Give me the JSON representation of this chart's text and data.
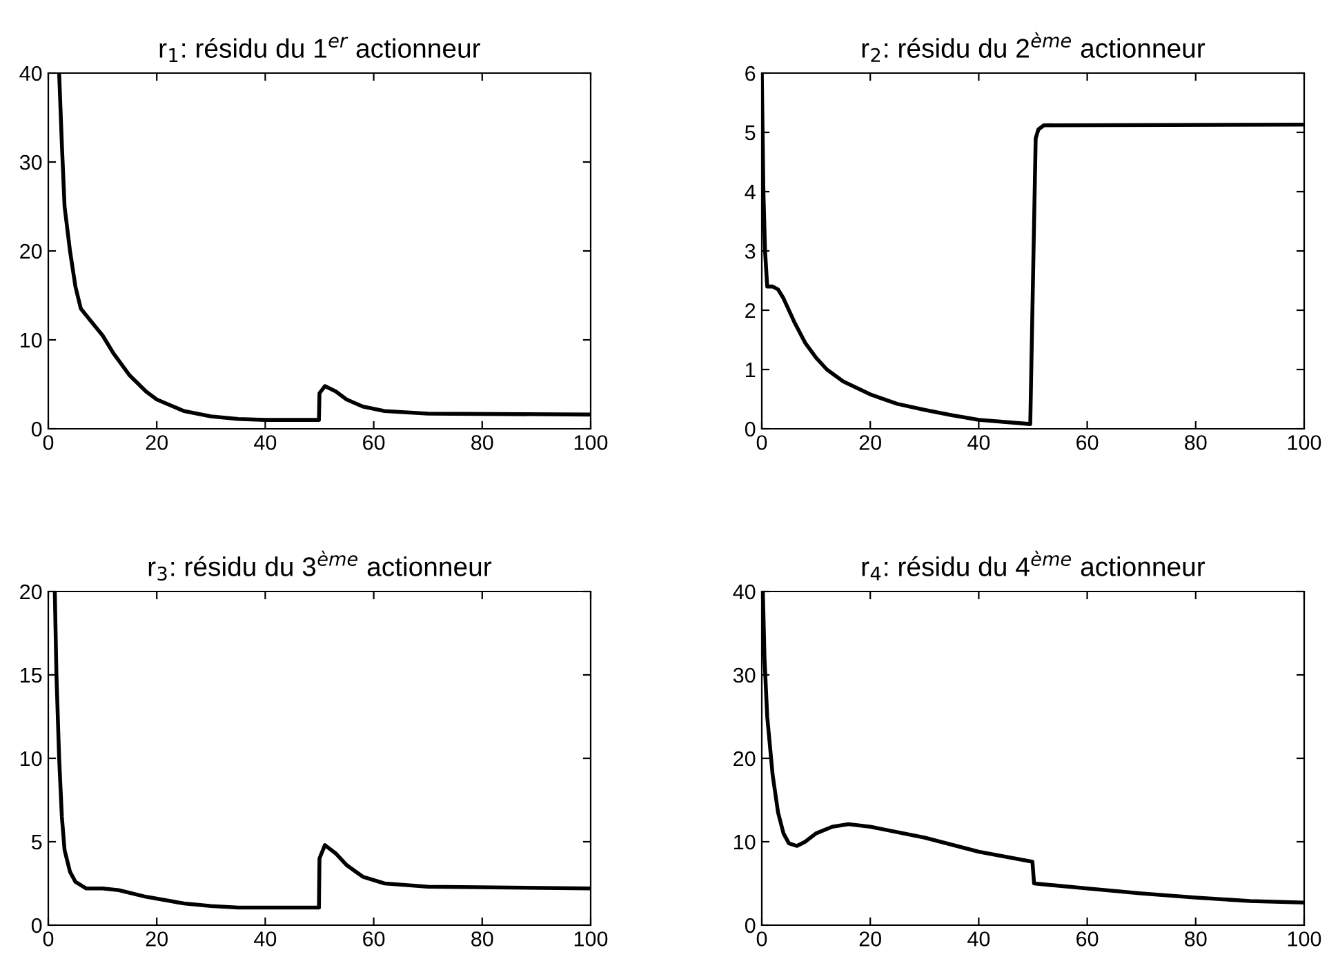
{
  "chart_data": [
    {
      "type": "line",
      "title": "r$_{1}$: résidu du 1$^{er}$ actionneur",
      "xlim": [
        0,
        100
      ],
      "ylim": [
        0,
        40
      ],
      "xticks": [
        0,
        20,
        40,
        60,
        80,
        100
      ],
      "yticks": [
        0,
        10,
        20,
        30,
        40
      ],
      "grid": false,
      "legend": false,
      "series": [
        {
          "color": "#000000",
          "x": [
            2,
            2.5,
            3,
            4,
            5,
            6,
            8,
            10,
            12,
            15,
            18,
            20,
            25,
            30,
            35,
            40,
            49.9,
            50,
            51,
            53,
            55,
            58,
            62,
            70,
            100
          ],
          "values": [
            40,
            32,
            25,
            20,
            16,
            13.5,
            12,
            10.5,
            8.5,
            6,
            4.2,
            3.3,
            2,
            1.4,
            1.1,
            1.0,
            1.0,
            4,
            4.8,
            4.2,
            3.3,
            2.5,
            2,
            1.7,
            1.6
          ]
        }
      ]
    },
    {
      "type": "line",
      "title": "r$_{2}$: résidu du 2$^{ème}$ actionneur",
      "xlim": [
        0,
        100
      ],
      "ylim": [
        0,
        6
      ],
      "xticks": [
        0,
        20,
        40,
        60,
        80,
        100
      ],
      "yticks": [
        0,
        1,
        2,
        3,
        4,
        5,
        6
      ],
      "grid": false,
      "legend": false,
      "series": [
        {
          "color": "#000000",
          "x": [
            0,
            0.3,
            0.6,
            1,
            2,
            3,
            4,
            6,
            8,
            10,
            12,
            15,
            20,
            25,
            30,
            35,
            40,
            49.5,
            50,
            50.5,
            51,
            52,
            100
          ],
          "values": [
            6,
            4,
            3,
            2.4,
            2.4,
            2.35,
            2.2,
            1.8,
            1.45,
            1.2,
            1.0,
            0.8,
            0.58,
            0.42,
            0.32,
            0.23,
            0.15,
            0.08,
            2.5,
            4.9,
            5.05,
            5.12,
            5.13
          ]
        }
      ]
    },
    {
      "type": "line",
      "title": "r$_{3}$: résidu du 3$^{ème}$ actionneur",
      "xlim": [
        0,
        100
      ],
      "ylim": [
        0,
        20
      ],
      "xticks": [
        0,
        20,
        40,
        60,
        80,
        100
      ],
      "yticks": [
        0,
        5,
        10,
        15,
        20
      ],
      "grid": false,
      "legend": false,
      "series": [
        {
          "color": "#000000",
          "x": [
            1.2,
            1.5,
            2,
            2.5,
            3,
            4,
            5,
            7,
            10,
            13,
            18,
            25,
            30,
            35,
            40,
            49.9,
            50,
            51,
            53,
            55,
            58,
            62,
            70,
            100
          ],
          "values": [
            20,
            15,
            10,
            6.5,
            4.5,
            3.2,
            2.6,
            2.2,
            2.2,
            2.1,
            1.7,
            1.3,
            1.15,
            1.05,
            1.05,
            1.05,
            4,
            4.8,
            4.3,
            3.6,
            2.9,
            2.5,
            2.3,
            2.2
          ]
        }
      ]
    },
    {
      "type": "line",
      "title": "r$_{4}$: résidu du 4$^{ème}$ actionneur",
      "xlim": [
        0,
        100
      ],
      "ylim": [
        0,
        40
      ],
      "xticks": [
        0,
        20,
        40,
        60,
        80,
        100
      ],
      "yticks": [
        0,
        10,
        20,
        30,
        40
      ],
      "grid": false,
      "legend": false,
      "series": [
        {
          "color": "#000000",
          "x": [
            0.2,
            0.5,
            1,
            2,
            3,
            4,
            5,
            6.5,
            8,
            10,
            13,
            16,
            20,
            30,
            40,
            49.9,
            50.2,
            60,
            70,
            80,
            90,
            100
          ],
          "values": [
            40,
            32,
            25,
            18,
            13.5,
            11,
            9.8,
            9.5,
            10,
            11,
            11.8,
            12.1,
            11.8,
            10.5,
            8.8,
            7.6,
            5,
            4.4,
            3.8,
            3.3,
            2.9,
            2.7
          ]
        }
      ]
    }
  ]
}
